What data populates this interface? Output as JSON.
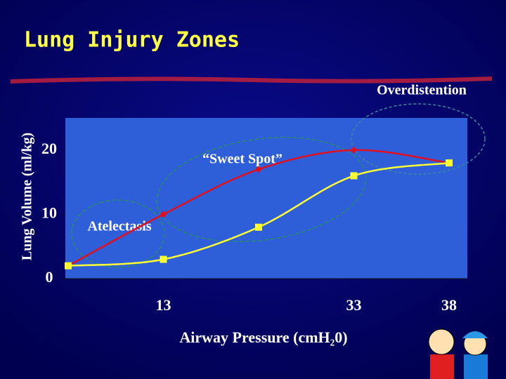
{
  "chart_data": {
    "type": "line",
    "title": "Lung Injury Zones",
    "y_label": "Lung Volume (ml/kg)",
    "x_label": "Airway Pressure (cmH₂0)",
    "categories": [
      null,
      "13",
      null,
      "33",
      "38"
    ],
    "series": [
      {
        "color": "#e01020",
        "values": [
          2,
          10,
          17,
          20,
          18
        ]
      },
      {
        "color": "#ffff33",
        "values": [
          2,
          3,
          8,
          16,
          18
        ]
      }
    ],
    "ylim": [
      0,
      25
    ],
    "yticks": [
      0,
      10,
      20
    ],
    "plot_color": "#2f5fd8",
    "annotations": [
      "Overdistention",
      "“Sweet Spot”",
      "Atelectasis"
    ]
  }
}
